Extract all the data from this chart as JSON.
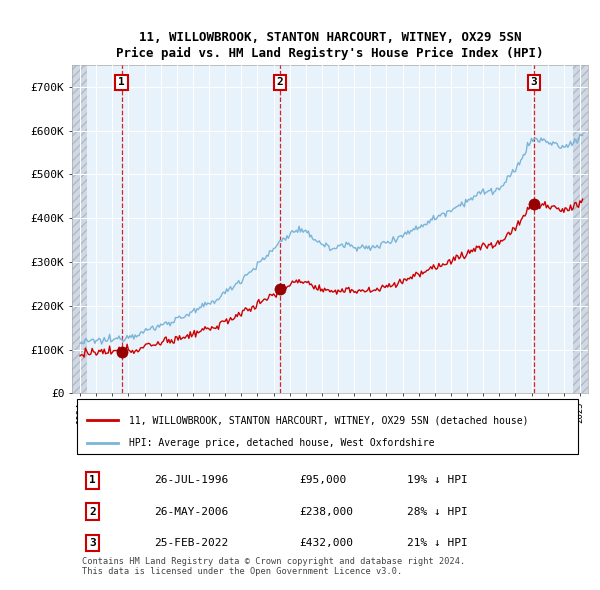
{
  "title": "11, WILLOWBROOK, STANTON HARCOURT, WITNEY, OX29 5SN",
  "subtitle": "Price paid vs. HM Land Registry's House Price Index (HPI)",
  "sale_dates_float": [
    1996.57,
    2006.4,
    2022.15
  ],
  "sale_prices": [
    95000,
    238000,
    432000
  ],
  "sale_labels": [
    "1",
    "2",
    "3"
  ],
  "sale_label_dates": [
    "26-JUL-1996",
    "26-MAY-2006",
    "25-FEB-2022"
  ],
  "sale_label_prices": [
    "£95,000",
    "£238,000",
    "£432,000"
  ],
  "sale_label_hpi": [
    "19% ↓ HPI",
    "28% ↓ HPI",
    "21% ↓ HPI"
  ],
  "hpi_line_color": "#7ab5d8",
  "sale_line_color": "#cc0000",
  "sale_dot_color": "#990000",
  "vline_color": "#cc0000",
  "plot_bg_color": "#ddeeff",
  "hatch_color": "#c0c8d8",
  "ylim": [
    0,
    750000
  ],
  "yticks": [
    0,
    100000,
    200000,
    300000,
    400000,
    500000,
    600000,
    700000
  ],
  "ytick_labels": [
    "£0",
    "£100K",
    "£200K",
    "£300K",
    "£400K",
    "£500K",
    "£600K",
    "£700K"
  ],
  "xlim_start": 1993.5,
  "xlim_end": 2025.5,
  "hatch_left_end": 1994.42,
  "hatch_right_start": 2024.58,
  "legend_sale": "11, WILLOWBROOK, STANTON HARCOURT, WITNEY, OX29 5SN (detached house)",
  "legend_hpi": "HPI: Average price, detached house, West Oxfordshire",
  "footer": "Contains HM Land Registry data © Crown copyright and database right 2024.\nThis data is licensed under the Open Government Licence v3.0."
}
